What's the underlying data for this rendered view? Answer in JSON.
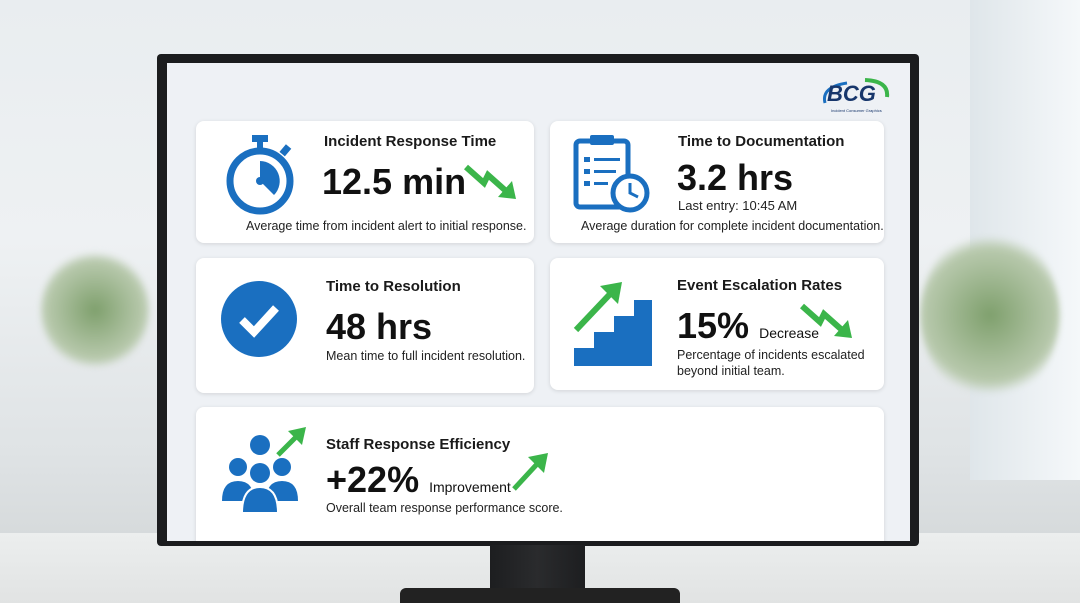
{
  "logo": {
    "text": "BCG",
    "tagline": "Incident Consumer Graphics"
  },
  "cards": [
    {
      "title": "Incident Response Time",
      "value": "12.5 min",
      "description": "Average time from incident alert to initial response.",
      "icon": "stopwatch-icon",
      "trend": "down"
    },
    {
      "title": "Time to Documentation",
      "value": "3.2 hrs",
      "subtext": "Last entry: 10:45 AM",
      "description": "Average duration for complete incident documentation.",
      "icon": "clipboard-clock-icon"
    },
    {
      "title": "Time to Resolution",
      "value": "48 hrs",
      "description": "Mean time to full incident resolution.",
      "icon": "checkmark-circle-icon"
    },
    {
      "title": "Event Escalation Rates",
      "value": "15%",
      "value_note": "Decrease",
      "description": "Percentage of incidents escalated beyond initial team.",
      "icon": "stairs-arrow-icon",
      "trend": "down"
    },
    {
      "title": "Staff Response Efficiency",
      "value": "+22%",
      "value_note": "Improvement",
      "description": "Overall team response performance score.",
      "icon": "team-icon",
      "trend": "up"
    }
  ],
  "colors": {
    "accent_blue": "#1a6fc0",
    "trend_green": "#3bb54a"
  }
}
